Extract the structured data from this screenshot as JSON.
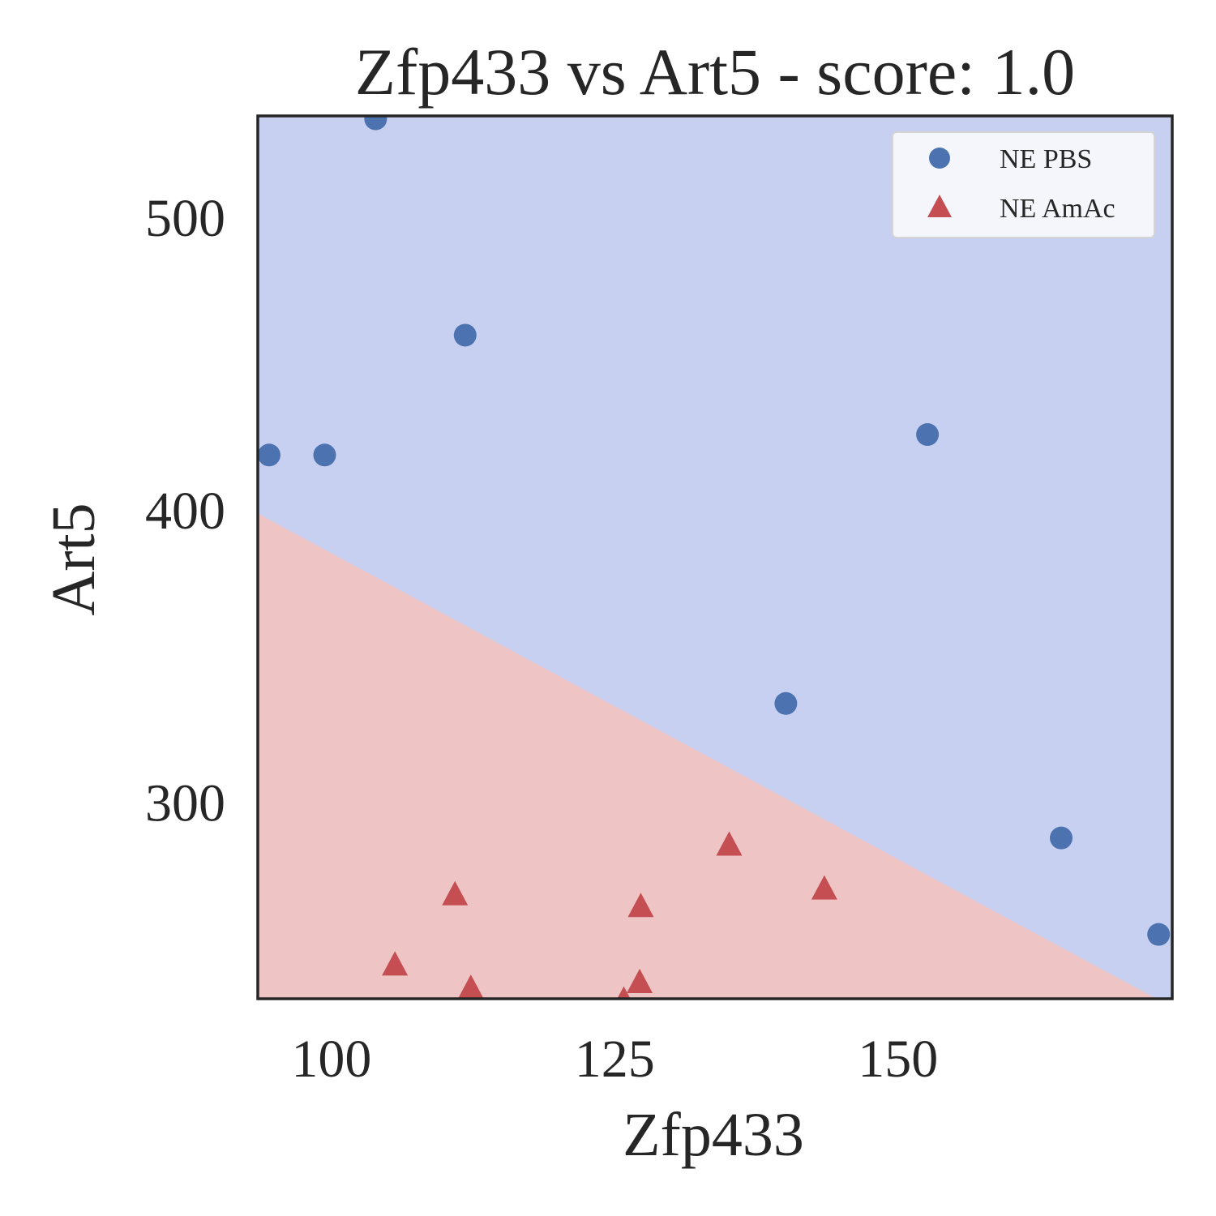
{
  "chart_data": {
    "type": "scatter",
    "title": "Zfp433 vs Art5 - score: 1.0",
    "xlabel": "Zfp433",
    "ylabel": "Art5",
    "xlim": [
      93.5,
      174.2
    ],
    "ylim": [
      233,
      535
    ],
    "x_ticks": [
      100,
      125,
      150
    ],
    "y_ticks": [
      300,
      400,
      500
    ],
    "grid": false,
    "legend_position": "top-right",
    "decision_boundary": {
      "points": [
        [
          93.5,
          399
        ],
        [
          172.8,
          233
        ]
      ],
      "upper_region_color": "#c8d0f1",
      "lower_region_color": "#efc4c4",
      "upper_region_class": "NE PBS",
      "lower_region_class": "NE AmAc"
    },
    "series": [
      {
        "name": "NE PBS",
        "marker": "circle",
        "color": "#4c72b0",
        "points": [
          [
            103.9,
            534
          ],
          [
            111.8,
            460
          ],
          [
            94.5,
            419
          ],
          [
            99.4,
            419
          ],
          [
            152.6,
            426
          ],
          [
            140.1,
            334
          ],
          [
            164.4,
            288
          ],
          [
            173.0,
            255
          ]
        ]
      },
      {
        "name": "NE AmAc",
        "marker": "triangle",
        "color": "#c44e52",
        "points": [
          [
            110.9,
            268
          ],
          [
            105.6,
            244
          ],
          [
            112.3,
            236
          ],
          [
            127.3,
            264
          ],
          [
            127.2,
            238
          ],
          [
            125.8,
            232
          ],
          [
            135.1,
            285
          ],
          [
            143.5,
            270
          ]
        ]
      }
    ]
  }
}
